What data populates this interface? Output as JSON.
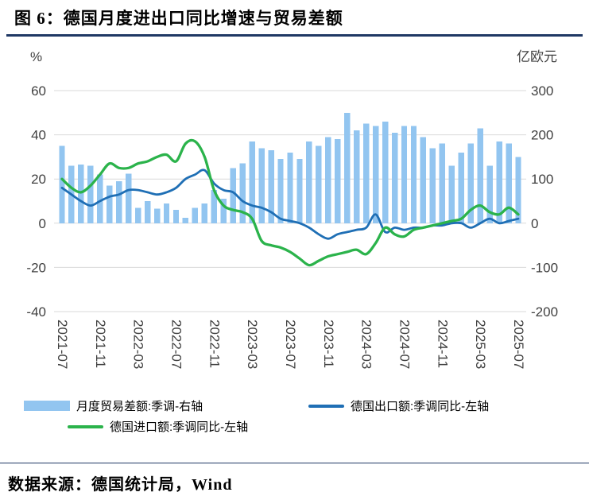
{
  "title": "图 6：德国月度进出口同比增速与贸易差额",
  "source": "数据来源：德国统计局，Wind",
  "chart_data": {
    "type": "bar+line combo",
    "grid": true,
    "x_tick_step": 4,
    "x": [
      "2021-07",
      "2021-08",
      "2021-09",
      "2021-10",
      "2021-11",
      "2021-12",
      "2022-01",
      "2022-02",
      "2022-03",
      "2022-04",
      "2022-05",
      "2022-06",
      "2022-07",
      "2022-08",
      "2022-09",
      "2022-10",
      "2022-11",
      "2022-12",
      "2023-01",
      "2023-02",
      "2023-03",
      "2023-04",
      "2023-05",
      "2023-06",
      "2023-07",
      "2023-08",
      "2023-09",
      "2023-10",
      "2023-11",
      "2023-12",
      "2024-01",
      "2024-02",
      "2024-03",
      "2024-04",
      "2024-05",
      "2024-06",
      "2024-07",
      "2024-08",
      "2024-09",
      "2024-10",
      "2024-11",
      "2024-12",
      "2025-01",
      "2025-02",
      "2025-03",
      "2025-04",
      "2025-05",
      "2025-06",
      "2025-07"
    ],
    "left_axis": {
      "unit": "%",
      "min": -40,
      "max": 60,
      "ticks": [
        60,
        40,
        20,
        0,
        -20,
        -40
      ]
    },
    "right_axis": {
      "unit": "亿欧元",
      "min": -200,
      "max": 300,
      "ticks": [
        300,
        200,
        100,
        0,
        -100,
        -200
      ]
    },
    "series": [
      {
        "name": "月度贸易差额:季调-右轴",
        "type": "bar",
        "axis": "right",
        "color": "#92C5F0",
        "values": [
          175,
          130,
          133,
          130,
          110,
          85,
          95,
          112,
          35,
          50,
          33,
          45,
          30,
          12,
          35,
          45,
          75,
          55,
          125,
          135,
          185,
          170,
          165,
          145,
          160,
          145,
          185,
          175,
          195,
          190,
          250,
          210,
          225,
          220,
          230,
          205,
          220,
          220,
          195,
          170,
          180,
          130,
          160,
          180,
          215,
          130,
          185,
          180,
          150
        ]
      },
      {
        "name": "德国出口额:季调同比-左轴",
        "type": "line",
        "axis": "left",
        "color": "#1F6FB5",
        "values": [
          16,
          13,
          10,
          8,
          10,
          12,
          13,
          15,
          15,
          14,
          13,
          14,
          16,
          20,
          22,
          24,
          18,
          15,
          14,
          10,
          8,
          7,
          5,
          2,
          1,
          0,
          -2,
          -5,
          -7,
          -5,
          -4,
          -3,
          -2,
          4,
          -4,
          -2,
          -3,
          -2,
          -2,
          -1,
          -1,
          0,
          0,
          -2,
          0,
          2,
          0,
          1,
          2
        ]
      },
      {
        "name": "德国进口额:季调同比-左轴",
        "type": "line",
        "axis": "left",
        "color": "#2BB34B",
        "values": [
          20,
          16,
          14,
          17,
          22,
          27,
          25,
          25,
          27,
          28,
          30,
          31,
          28,
          36,
          37,
          30,
          15,
          8,
          6,
          5,
          2,
          -8,
          -10,
          -11,
          -13,
          -16,
          -19,
          -17,
          -15,
          -14,
          -13,
          -12,
          -14,
          -9,
          -2,
          -5,
          -6,
          -3,
          -2,
          -1,
          0,
          1,
          2,
          6,
          8,
          5,
          4,
          7,
          4
        ]
      }
    ]
  }
}
